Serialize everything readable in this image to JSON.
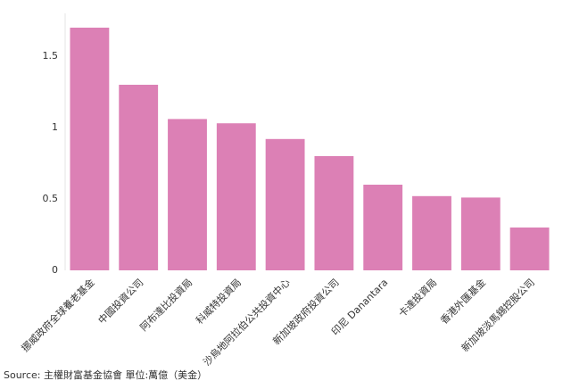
{
  "chart_data": {
    "type": "bar",
    "categories": [
      "挪威政府全球養老基金",
      "中國投資公司",
      "阿布達比投資局",
      "科威特投資局",
      "沙烏地阿拉伯公共投資中心",
      "新加坡政府投資公司",
      "印尼 Danantara",
      "卡達投資局",
      "香港外匯基金",
      "新加坡淡馬錫控股公司"
    ],
    "values": [
      1.7,
      1.3,
      1.06,
      1.03,
      0.92,
      0.8,
      0.6,
      0.52,
      0.51,
      0.3
    ],
    "color": "#dc80b5",
    "ylim": [
      0,
      1.75
    ],
    "yticks": [
      0,
      0.5,
      1,
      1.5
    ],
    "grid": false,
    "source": "Source: 主權財富基金協會 單位:萬億（美金）"
  }
}
